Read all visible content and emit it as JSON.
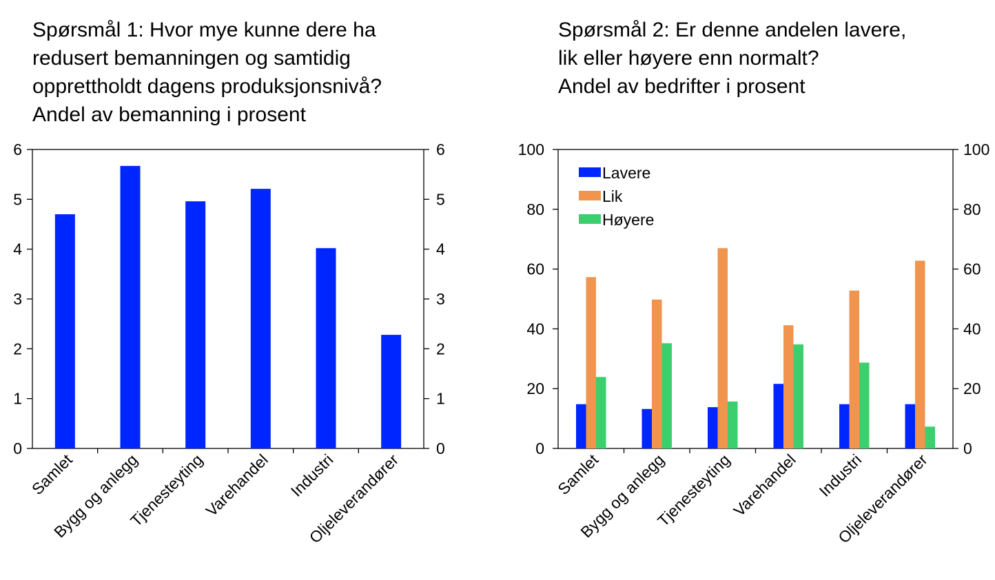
{
  "chart_data": [
    {
      "type": "bar",
      "title_lines": [
        "Spørsmål 1: Hvor mye kunne dere ha",
        "redusert bemanningen og samtidig",
        "opprettholdt dagens produksjonsnivå?",
        "Andel av bemanning i prosent"
      ],
      "categories": [
        "Samlet",
        "Bygg og anlegg",
        "Tjenesteyting",
        "Varehandel",
        "Industri",
        "Oljeleverandører"
      ],
      "series": [
        {
          "values": [
            4.7,
            5.67,
            4.96,
            5.21,
            4.02,
            2.28
          ],
          "color": "#0026ff"
        }
      ],
      "ylim": [
        0,
        6
      ],
      "yticks": [
        "0",
        "1",
        "2",
        "3",
        "4",
        "5",
        "6"
      ],
      "grid": false,
      "legend": null
    },
    {
      "type": "bar",
      "title_lines": [
        "Spørsmål 2: Er denne andelen lavere,",
        "lik eller høyere enn normalt?",
        "Andel av bedrifter i prosent"
      ],
      "categories": [
        "Samlet",
        "Bygg og anlegg",
        "Tjenesteyting",
        "Varehandel",
        "Industri",
        "Oljeleverandører"
      ],
      "series": [
        {
          "name": "Lavere",
          "values": [
            14.8,
            13.2,
            13.8,
            21.6,
            14.8,
            14.8
          ],
          "color": "#0026ff"
        },
        {
          "name": "Lik",
          "values": [
            57.3,
            49.8,
            67.0,
            41.2,
            52.8,
            62.8
          ],
          "color": "#f0944e"
        },
        {
          "name": "Høyere",
          "values": [
            23.9,
            35.2,
            15.7,
            34.8,
            28.7,
            7.3
          ],
          "color": "#3ccf6e"
        }
      ],
      "ylim": [
        0,
        100
      ],
      "yticks": [
        "0",
        "20",
        "40",
        "60",
        "80",
        "100"
      ],
      "grid": false,
      "legend": "top-left"
    }
  ]
}
